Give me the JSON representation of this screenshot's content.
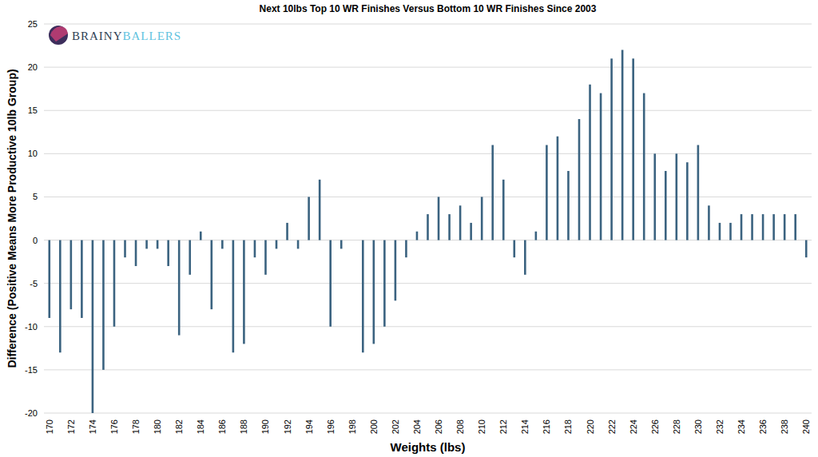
{
  "chart_data": {
    "type": "bar",
    "title": "Next 10lbs Top 10 WR Finishes Versus Bottom 10 WR Finishes Since 2003",
    "x_label": "Weights (lbs)",
    "y_label": "Difference (Positive Means More Productive 10lb Group)",
    "annotations": [
      "BRAINY",
      "BALLERS"
    ],
    "categories": [
      "170",
      null,
      "172",
      null,
      "174",
      null,
      "176",
      null,
      "178",
      null,
      "180",
      null,
      "182",
      null,
      "184",
      null,
      "186",
      null,
      "188",
      null,
      "190",
      null,
      "192",
      null,
      "194",
      null,
      "196",
      null,
      "198",
      null,
      "200",
      null,
      "202",
      null,
      "204",
      null,
      "206",
      null,
      "208",
      null,
      "210",
      null,
      "212",
      null,
      "214",
      null,
      "216",
      null,
      "218",
      null,
      "220",
      null,
      "222",
      null,
      "224",
      null,
      "226",
      null,
      "228",
      null,
      "230",
      null,
      "232",
      null,
      "234",
      null,
      "236",
      null,
      "238",
      null,
      "240"
    ],
    "values": [
      -9,
      -13,
      -8,
      -9,
      -20,
      -15,
      -10,
      -2,
      -3,
      -1,
      -1,
      -3,
      -11,
      -4,
      1,
      -8,
      -1,
      -13,
      -12,
      -2,
      -4,
      -1,
      2,
      -1,
      5,
      7,
      -10,
      -1,
      0,
      -13,
      -12,
      -10,
      -7,
      -2,
      1,
      3,
      5,
      3,
      4,
      2,
      5,
      11,
      7,
      -2,
      -4,
      1,
      11,
      12,
      8,
      14,
      18,
      17,
      21,
      22,
      21,
      17,
      10,
      8,
      10,
      9,
      11,
      4,
      2,
      2,
      3,
      3,
      3,
      3,
      3,
      3,
      -2
    ],
    "color": "#3b6380",
    "ylim": [
      -20,
      25
    ],
    "yticks": [
      -20,
      -15,
      -10,
      -5,
      0,
      5,
      10,
      15,
      20,
      25
    ],
    "grid": true
  }
}
